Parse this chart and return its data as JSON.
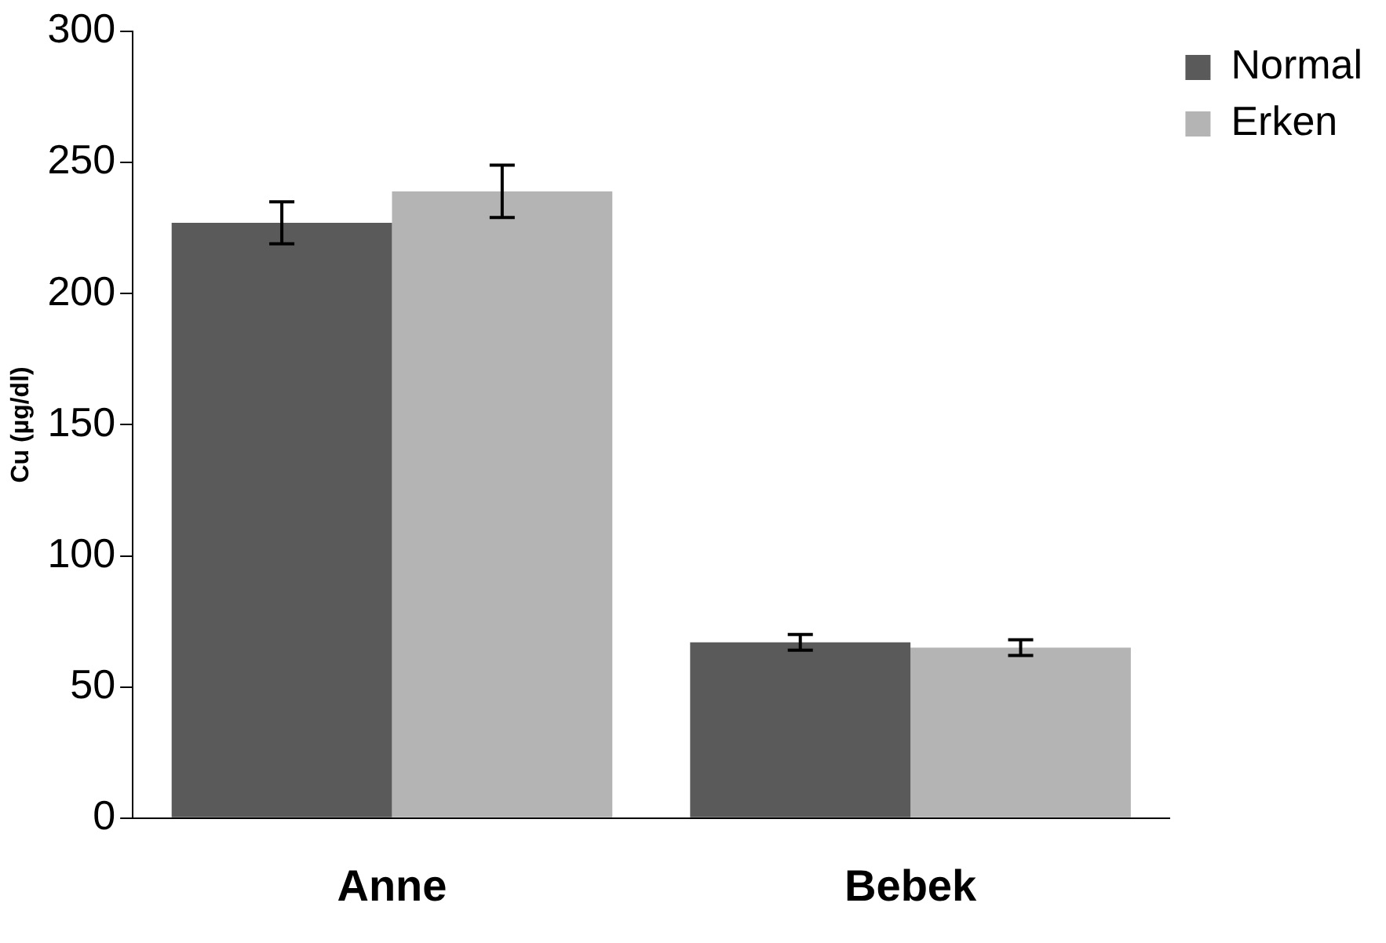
{
  "chart_data": {
    "type": "bar",
    "ylabel": "Cu (µg/dl)",
    "categories": [
      "Anne",
      "Bebek"
    ],
    "series": [
      {
        "name": "Normal",
        "color": "#5a5a5a",
        "values": [
          227,
          67
        ],
        "errors": [
          8,
          3
        ]
      },
      {
        "name": "Erken",
        "color": "#b4b4b4",
        "values": [
          239,
          65
        ],
        "errors": [
          10,
          3
        ]
      }
    ],
    "ylim": [
      0,
      300
    ],
    "yticks": [
      0,
      50,
      100,
      150,
      200,
      250,
      300
    ],
    "grid": false,
    "legend": "top right"
  }
}
